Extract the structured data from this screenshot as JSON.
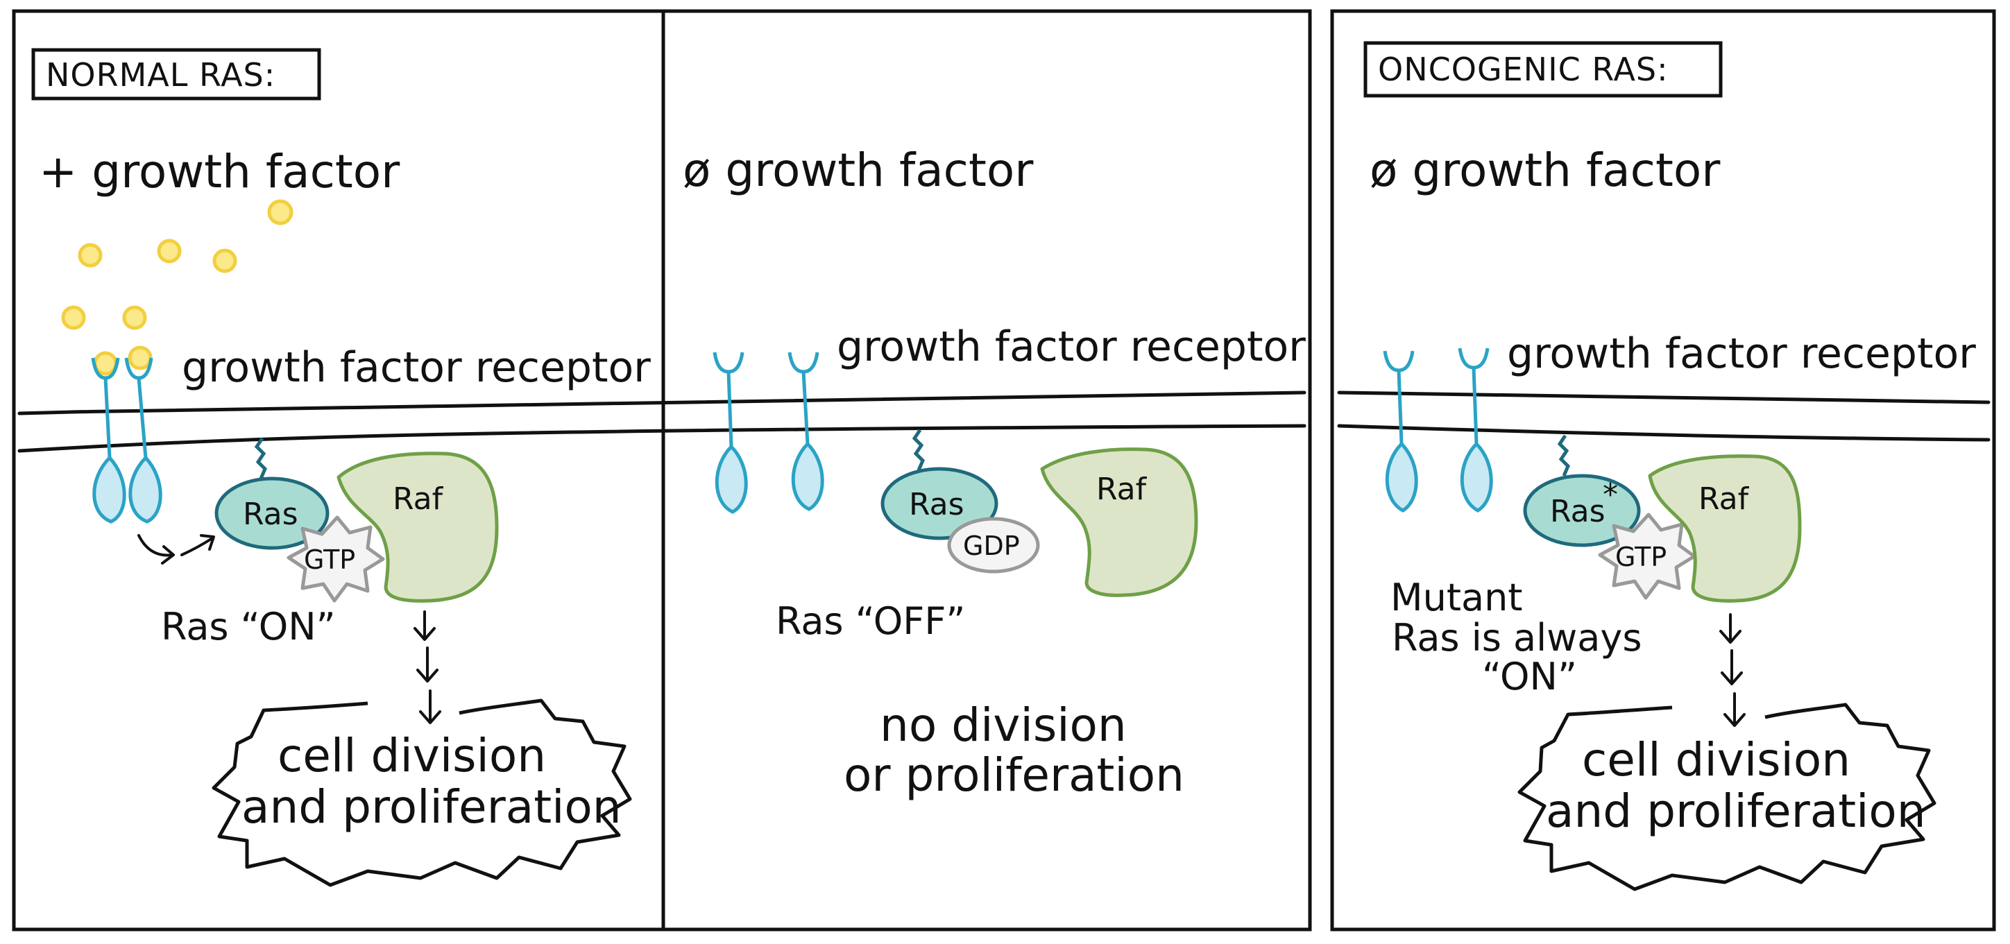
{
  "panels": {
    "normal": {
      "title": "NORMAL RAS:",
      "condition": "+ growth factor",
      "receptor_label": "growth factor receptor",
      "ras": "Ras",
      "raf": "Raf",
      "nucleotide": "GTP",
      "state": "Ras “ON”",
      "outcome_line1": "cell division",
      "outcome_line2": "and proliferation"
    },
    "no_gf": {
      "condition": "ø growth factor",
      "receptor_label": "growth factor receptor",
      "ras": "Ras",
      "raf": "Raf",
      "nucleotide": "GDP",
      "state": "Ras “OFF”",
      "outcome_line1": "no division",
      "outcome_line2": "or proliferation"
    },
    "oncogenic": {
      "title": "ONCOGENIC RAS:",
      "condition": "ø growth factor",
      "receptor_label": "growth factor receptor",
      "ras": "Ras",
      "mutation_mark": "*",
      "raf": "Raf",
      "nucleotide": "GTP",
      "note_line1": "Mutant",
      "note_line2": "Ras is always",
      "note_line3": "“ON”",
      "outcome_line1": "cell division",
      "outcome_line2": "and proliferation"
    }
  },
  "colors": {
    "outline": "#111111",
    "receptor": "#2aa3c6",
    "receptor_fill": "#c9e9f4",
    "ras_fill": "#a8dcd2",
    "ras_stroke": "#1f6a7c",
    "raf_fill": "#dde5c8",
    "raf_stroke": "#6fa048",
    "gtp_fill": "#f4f4f4",
    "gtp_stroke": "#999999",
    "growth_factor_fill": "#fbe98a",
    "growth_factor_stroke": "#f2cf3f"
  }
}
